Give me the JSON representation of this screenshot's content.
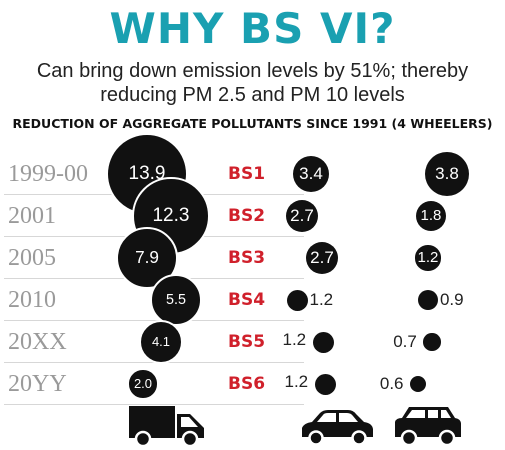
{
  "title": "WHY BS VI?",
  "subtitle_line1": "Can bring down emission levels by 51%; thereby",
  "subtitle_line2": "reducing PM 2.5 and PM 10 levels",
  "heading": "REDUCTION OF AGGREGATE POLLUTANTS SINCE 1991 (4 WHEELERS)",
  "colors": {
    "title": "#1aa0b1",
    "standard_label": "#d0202b",
    "bubble": "#111111",
    "year_label": "#9a9a9a"
  },
  "rows": [
    {
      "year": "1999-00",
      "standard": "BS1",
      "truck": "13.9",
      "car": "3.4",
      "suv": "3.8"
    },
    {
      "year": "2001",
      "standard": "BS2",
      "truck": "12.3",
      "car": "2.7",
      "suv": "1.8"
    },
    {
      "year": "2005",
      "standard": "BS3",
      "truck": "7.9",
      "car": "2.7",
      "suv": "1.2"
    },
    {
      "year": "2010",
      "standard": "BS4",
      "truck": "5.5",
      "car": "1.2",
      "suv": "0.9"
    },
    {
      "year": "20XX",
      "standard": "BS5",
      "truck": "4.1",
      "car": "1.2",
      "suv": "0.7"
    },
    {
      "year": "20YY",
      "standard": "BS6",
      "truck": "2.0",
      "car": "1.2",
      "suv": "0.6"
    }
  ],
  "vehicles": {
    "column1": "truck-icon",
    "column2": "car-icon",
    "column3": "suv-icon"
  }
}
